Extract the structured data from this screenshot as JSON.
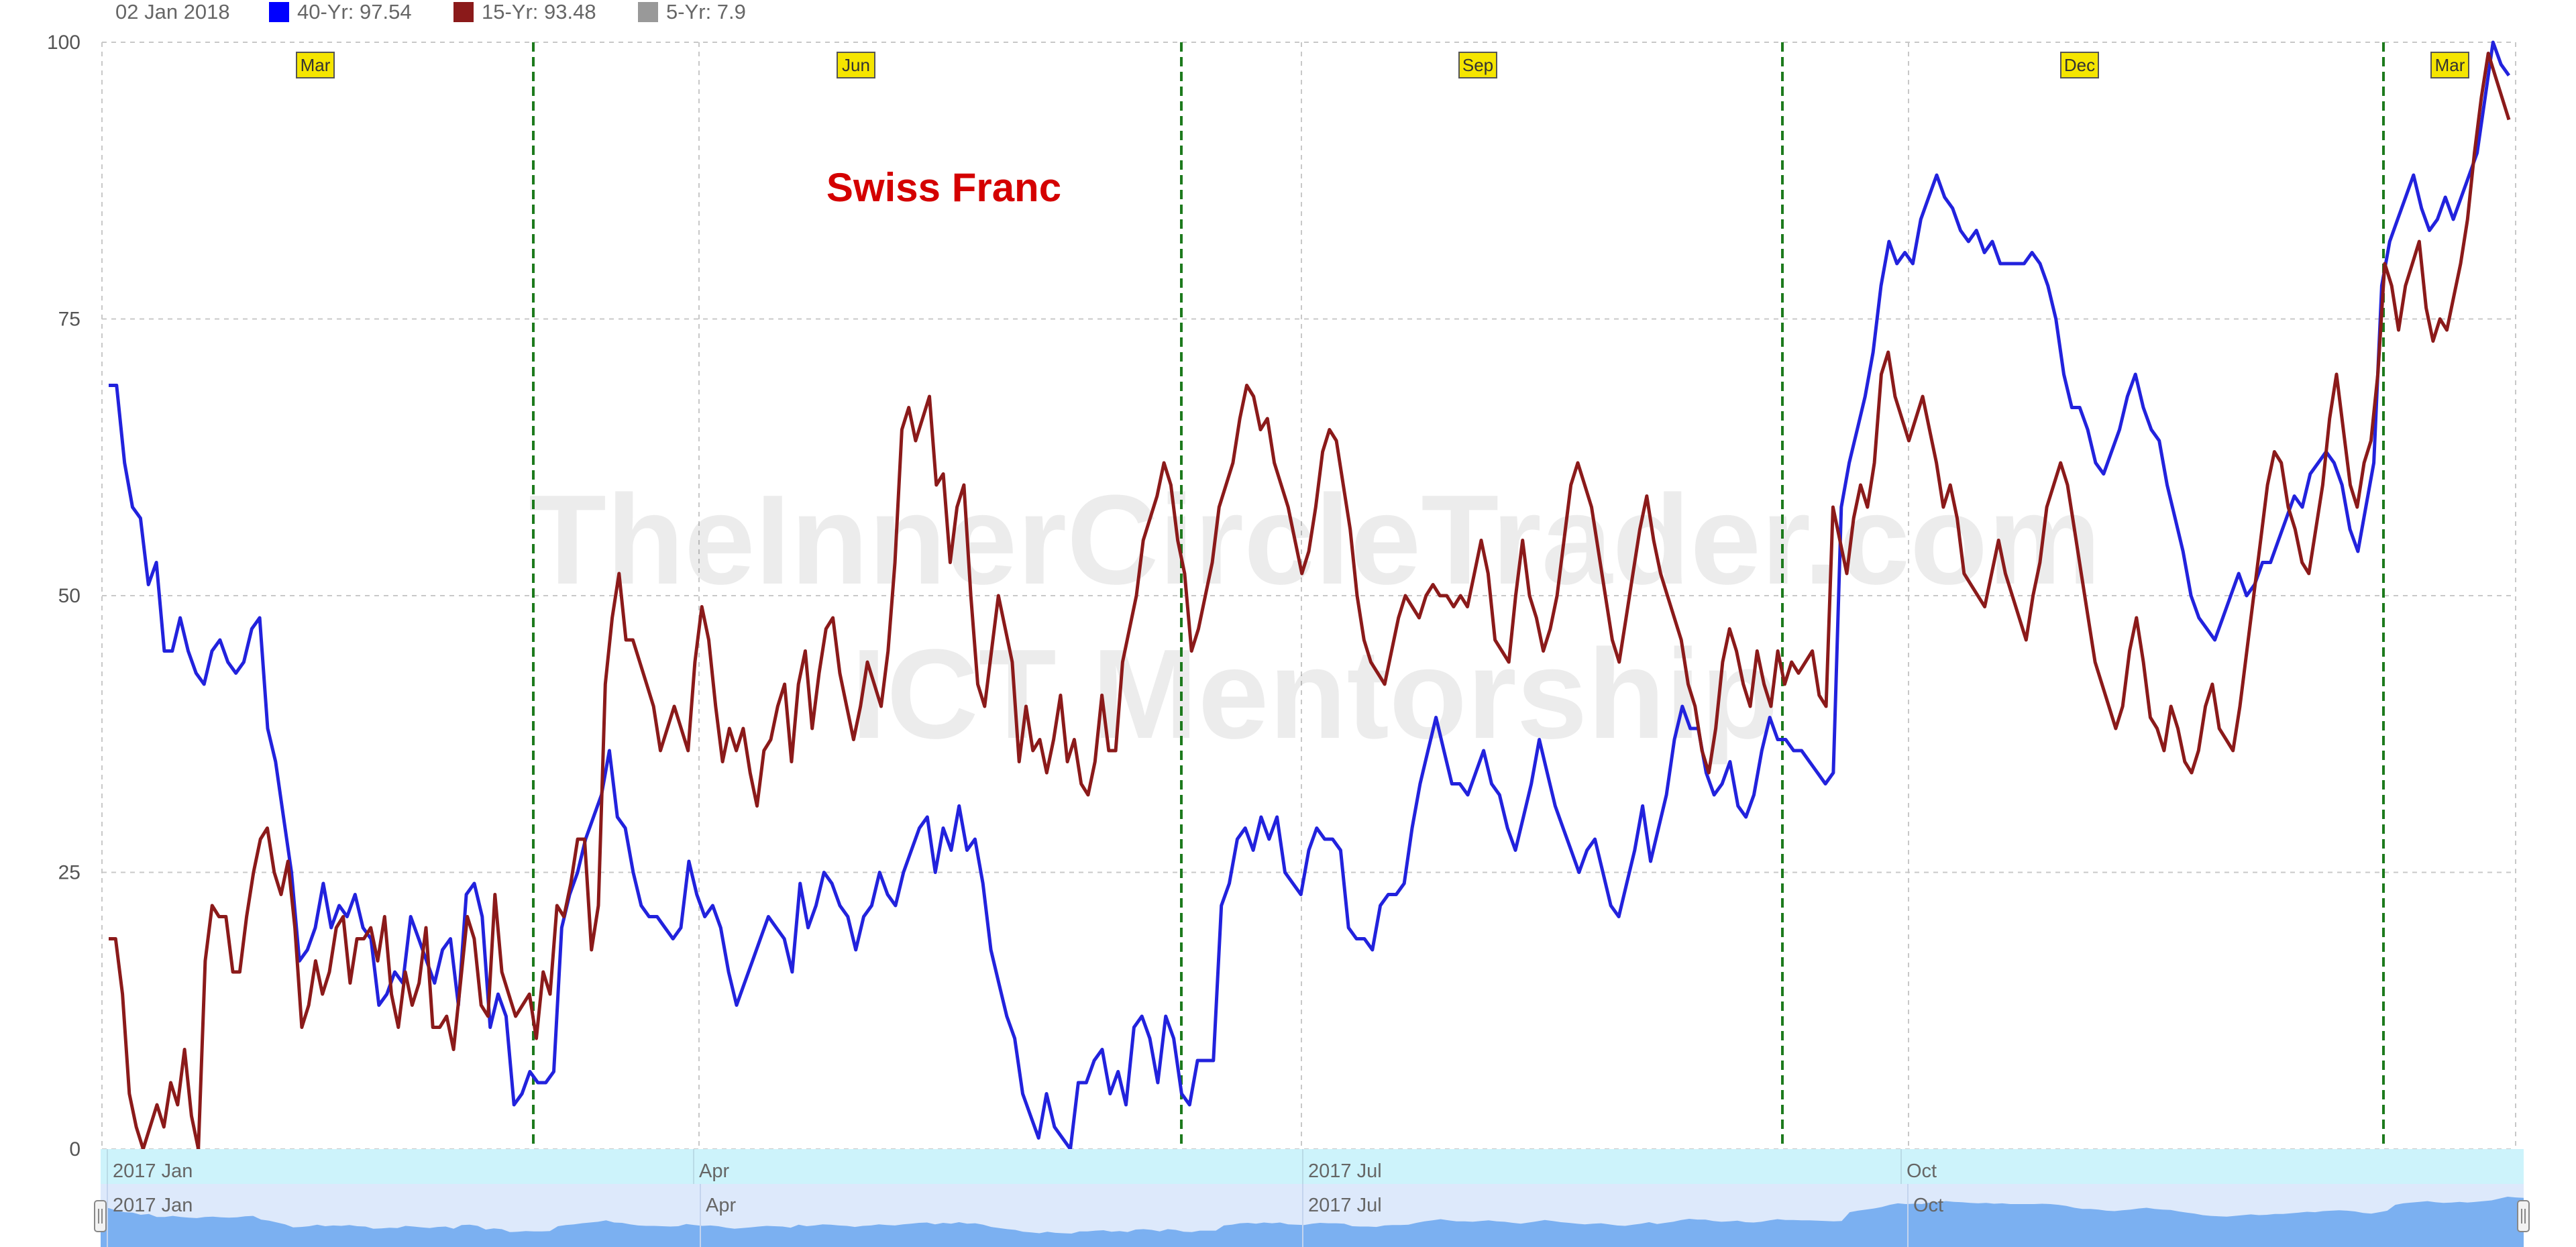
{
  "legend": {
    "date": "02 Jan 2018",
    "items": [
      {
        "label": "40-Yr: 97.54",
        "color": "#0000ff"
      },
      {
        "label": "15-Yr: 93.48",
        "color": "#8b1a1a"
      },
      {
        "label": "5-Yr: 7.9",
        "color": "#999999"
      }
    ]
  },
  "watermark": {
    "line1": "TheInnerCircleTrader.com",
    "line2": "ICT Mentorship"
  },
  "navigator": {
    "upper_labels": [
      "2017 Jan",
      "Apr",
      "2017 Jul",
      "Oct"
    ],
    "lower_labels": [
      "2017 Jan",
      "Apr",
      "2017 Jul",
      "Oct"
    ]
  },
  "chart_data": {
    "type": "line",
    "title": "Swiss Franc",
    "ylim": [
      0,
      100
    ],
    "y_ticks": [
      "0",
      "25",
      "50",
      "75",
      "100"
    ],
    "x_labels": [
      "2017 Jan",
      "Apr",
      "2017 Jul",
      "Oct"
    ],
    "contract_markers": [
      "Mar",
      "Jun",
      "Sep",
      "Dec",
      "Mar"
    ],
    "grid": true,
    "series": [
      {
        "name": "40-Yr",
        "color": "#2222dd",
        "values": [
          69,
          69,
          62,
          58,
          57,
          51,
          53,
          45,
          45,
          48,
          45,
          43,
          42,
          45,
          46,
          44,
          43,
          44,
          47,
          48,
          38,
          35,
          30,
          25,
          17,
          18,
          20,
          24,
          20,
          22,
          21,
          23,
          20,
          19,
          13,
          14,
          16,
          15,
          21,
          19,
          17,
          15,
          18,
          19,
          13,
          23,
          24,
          21,
          11,
          14,
          12,
          4,
          5,
          7,
          6,
          6,
          7,
          20,
          23,
          25,
          28,
          30,
          32,
          36,
          30,
          29,
          25,
          22,
          21,
          21,
          20,
          19,
          20,
          26,
          23,
          21,
          22,
          20,
          16,
          13,
          15,
          17,
          19,
          21,
          20,
          19,
          16,
          24,
          20,
          22,
          25,
          24,
          22,
          21,
          18,
          21,
          22,
          25,
          23,
          22,
          25,
          27,
          29,
          30,
          25,
          29,
          27,
          31,
          27,
          28,
          24,
          18,
          15,
          12,
          10,
          5,
          3,
          1,
          5,
          2,
          1,
          0,
          6,
          6,
          8,
          9,
          5,
          7,
          4,
          11,
          12,
          10,
          6,
          12,
          10,
          5,
          4,
          8,
          8,
          8,
          22,
          24,
          28,
          29,
          27,
          30,
          28,
          30,
          25,
          24,
          23,
          27,
          29,
          28,
          28,
          27,
          20,
          19,
          19,
          18,
          22,
          23,
          23,
          24,
          29,
          33,
          36,
          39,
          36,
          33,
          33,
          32,
          34,
          36,
          33,
          32,
          29,
          27,
          30,
          33,
          37,
          34,
          31,
          29,
          27,
          25,
          27,
          28,
          25,
          22,
          21,
          24,
          27,
          31,
          26,
          29,
          32,
          37,
          40,
          38,
          38,
          34,
          32,
          33,
          35,
          31,
          30,
          32,
          36,
          39,
          37,
          37,
          36,
          36,
          35,
          34,
          33,
          34,
          58,
          62,
          65,
          68,
          72,
          78,
          82,
          80,
          81,
          80,
          84,
          86,
          88,
          86,
          85,
          83,
          82,
          83,
          81,
          82,
          80,
          80,
          80,
          80,
          81,
          80,
          78,
          75,
          70,
          67,
          67,
          65,
          62,
          61,
          63,
          65,
          68,
          70,
          67,
          65,
          64,
          60,
          57,
          54,
          50,
          48,
          47,
          46,
          48,
          50,
          52,
          50,
          51,
          53,
          53,
          55,
          57,
          59,
          58,
          61,
          62,
          63,
          62,
          60,
          56,
          54,
          58,
          62,
          78,
          82,
          84,
          86,
          88,
          85,
          83,
          84,
          86,
          84,
          86,
          88,
          90,
          95,
          100,
          98,
          97
        ]
      },
      {
        "name": "15-Yr",
        "color": "#8b1a1a",
        "values": [
          19,
          19,
          14,
          5,
          2,
          0,
          2,
          4,
          2,
          6,
          4,
          9,
          3,
          0,
          17,
          22,
          21,
          21,
          16,
          16,
          21,
          25,
          28,
          29,
          25,
          23,
          26,
          20,
          11,
          13,
          17,
          14,
          16,
          20,
          21,
          15,
          19,
          19,
          20,
          17,
          21,
          14,
          11,
          16,
          13,
          15,
          20,
          11,
          11,
          12,
          9,
          15,
          21,
          19,
          13,
          12,
          23,
          16,
          14,
          12,
          13,
          14,
          10,
          16,
          14,
          22,
          21,
          24,
          28,
          28,
          18,
          22,
          42,
          48,
          52,
          46,
          46,
          44,
          42,
          40,
          36,
          38,
          40,
          38,
          36,
          44,
          49,
          46,
          40,
          35,
          38,
          36,
          38,
          34,
          31,
          36,
          37,
          40,
          42,
          35,
          42,
          45,
          38,
          43,
          47,
          48,
          43,
          40,
          37,
          40,
          44,
          42,
          40,
          45,
          53,
          65,
          67,
          64,
          66,
          68,
          60,
          61,
          53,
          58,
          60,
          50,
          42,
          40,
          45,
          50,
          47,
          44,
          35,
          40,
          36,
          37,
          34,
          37,
          41,
          35,
          37,
          33,
          32,
          35,
          41,
          36,
          36,
          44,
          47,
          50,
          55,
          57,
          59,
          62,
          60,
          55,
          52,
          45,
          47,
          50,
          53,
          58,
          60,
          62,
          66,
          69,
          68,
          65,
          66,
          62,
          60,
          58,
          55,
          52,
          54,
          58,
          63,
          65,
          64,
          60,
          56,
          50,
          46,
          44,
          43,
          42,
          45,
          48,
          50,
          49,
          48,
          50,
          51,
          50,
          50,
          49,
          50,
          49,
          52,
          55,
          52,
          46,
          45,
          44,
          50,
          55,
          50,
          48,
          45,
          47,
          50,
          55,
          60,
          62,
          60,
          58,
          54,
          50,
          46,
          44,
          48,
          52,
          56,
          59,
          55,
          52,
          50,
          48,
          46,
          42,
          40,
          36,
          34,
          38,
          44,
          47,
          45,
          42,
          40,
          45,
          42,
          40,
          45,
          42,
          44,
          43,
          44,
          45,
          41,
          40,
          58,
          55,
          52,
          57,
          60,
          58,
          62,
          70,
          72,
          68,
          66,
          64,
          66,
          68,
          65,
          62,
          58,
          60,
          57,
          52,
          51,
          50,
          49,
          52,
          55,
          52,
          50,
          48,
          46,
          50,
          53,
          58,
          60,
          62,
          60,
          56,
          52,
          48,
          44,
          42,
          40,
          38,
          40,
          45,
          48,
          44,
          39,
          38,
          36,
          40,
          38,
          35,
          34,
          36,
          40,
          42,
          38,
          37,
          36,
          40,
          45,
          50,
          55,
          60,
          63,
          62,
          58,
          56,
          53,
          52,
          56,
          60,
          66,
          70,
          65,
          60,
          58,
          62,
          64,
          70,
          80,
          78,
          74,
          78,
          80,
          82,
          76,
          73,
          75,
          74,
          77,
          80,
          84,
          90,
          95,
          99,
          97,
          95,
          93
        ]
      }
    ]
  }
}
